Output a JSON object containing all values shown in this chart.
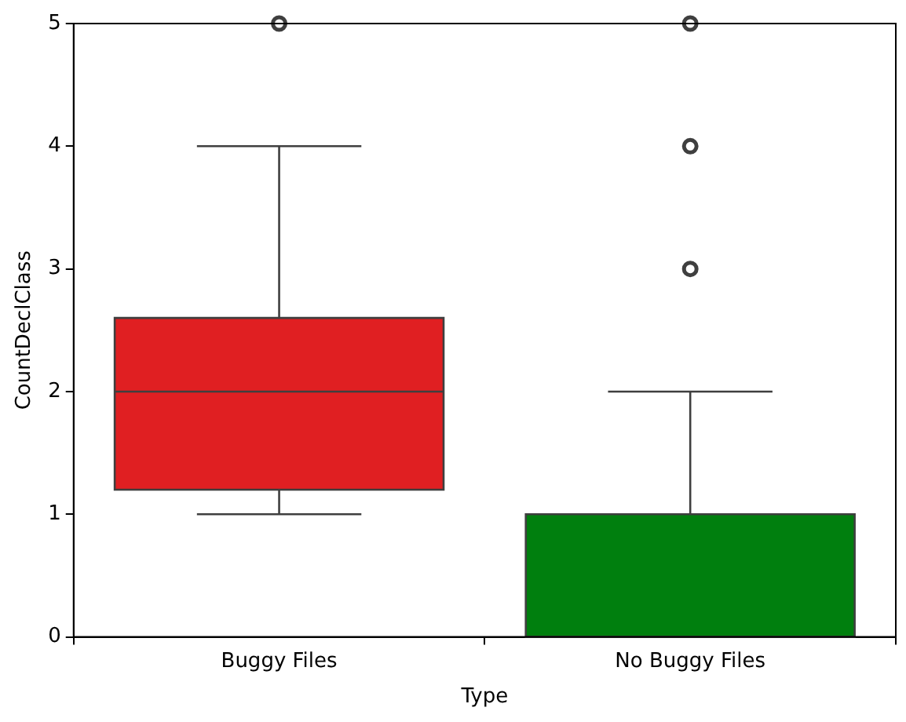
{
  "chart_data": {
    "type": "box",
    "xlabel": "Type",
    "ylabel": "CountDeclClass",
    "categories": [
      "Buggy Files",
      "No Buggy Files"
    ],
    "colors": [
      "#e01f22",
      "#007f0e"
    ],
    "boxes": [
      {
        "low": 1,
        "q1": 1.2,
        "median": 2,
        "q3": 2.6,
        "high": 4,
        "outliers": [
          5
        ]
      },
      {
        "low": 0,
        "q1": 0,
        "median": 0,
        "q3": 1,
        "high": 2,
        "outliers": [
          3,
          4,
          5
        ]
      }
    ],
    "ylim": [
      0,
      5
    ],
    "yticks": [
      0,
      1,
      2,
      3,
      4,
      5
    ],
    "grid": false,
    "legend": false
  }
}
